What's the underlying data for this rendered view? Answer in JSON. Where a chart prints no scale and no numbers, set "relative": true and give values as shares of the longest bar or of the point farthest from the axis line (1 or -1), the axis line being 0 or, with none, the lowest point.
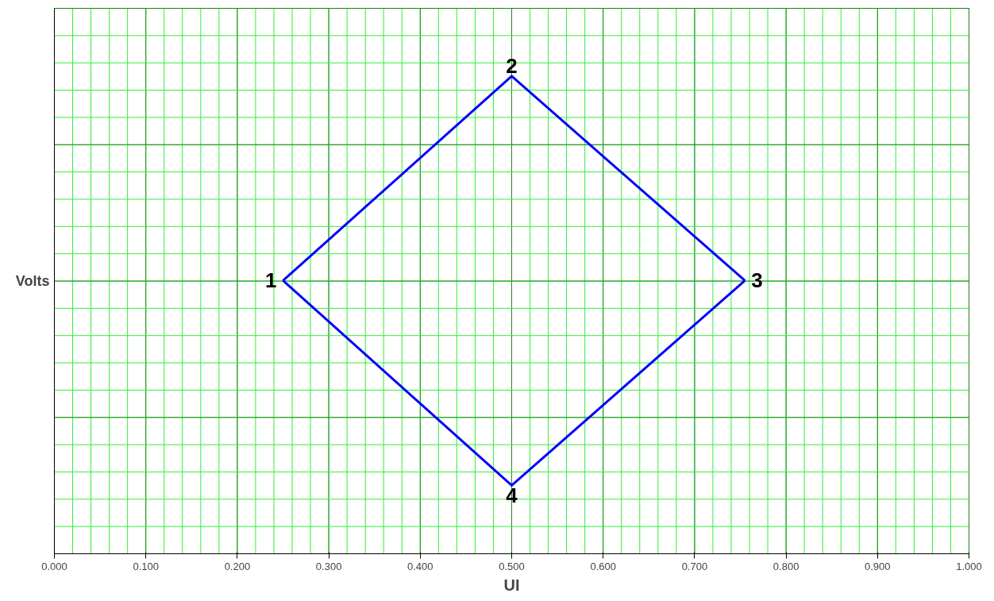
{
  "chart_data": {
    "type": "line",
    "xlabel": "UI",
    "ylabel": "Volts",
    "relative": true,
    "x": [
      0.25,
      0.5,
      0.755
    ],
    "series": [
      {
        "color": "#0000ff",
        "values": [
          0.572,
          1,
          0.572
        ]
      },
      {
        "color": "#0000ff",
        "values": [
          0.572,
          0.143,
          0.572
        ]
      }
    ],
    "xlim": [
      0,
      1
    ],
    "xticks": [
      {
        "value": 0,
        "label": "0.000"
      },
      {
        "value": 0.1,
        "label": "0.100"
      },
      {
        "value": 0.2,
        "label": "0.200"
      },
      {
        "value": 0.3,
        "label": "0.300"
      },
      {
        "value": 0.4,
        "label": "0.400"
      },
      {
        "value": 0.5,
        "label": "0.500"
      },
      {
        "value": 0.6,
        "label": "0.600"
      },
      {
        "value": 0.7,
        "label": "0.700"
      },
      {
        "value": 0.8,
        "label": "0.800"
      },
      {
        "value": 0.9,
        "label": "0.900"
      },
      {
        "value": 1,
        "label": "1.000"
      }
    ],
    "annotations": [
      {
        "text": "1",
        "x": 0.25,
        "y": 0.572
      },
      {
        "text": "2",
        "x": 0.5,
        "y": 1
      },
      {
        "text": "3",
        "x": 0.755,
        "y": 0.572
      },
      {
        "text": "4",
        "x": 0.5,
        "y": 0.143
      }
    ],
    "grid": true,
    "marker": "none",
    "line_style": "solid",
    "tick_labels": "x"
  }
}
